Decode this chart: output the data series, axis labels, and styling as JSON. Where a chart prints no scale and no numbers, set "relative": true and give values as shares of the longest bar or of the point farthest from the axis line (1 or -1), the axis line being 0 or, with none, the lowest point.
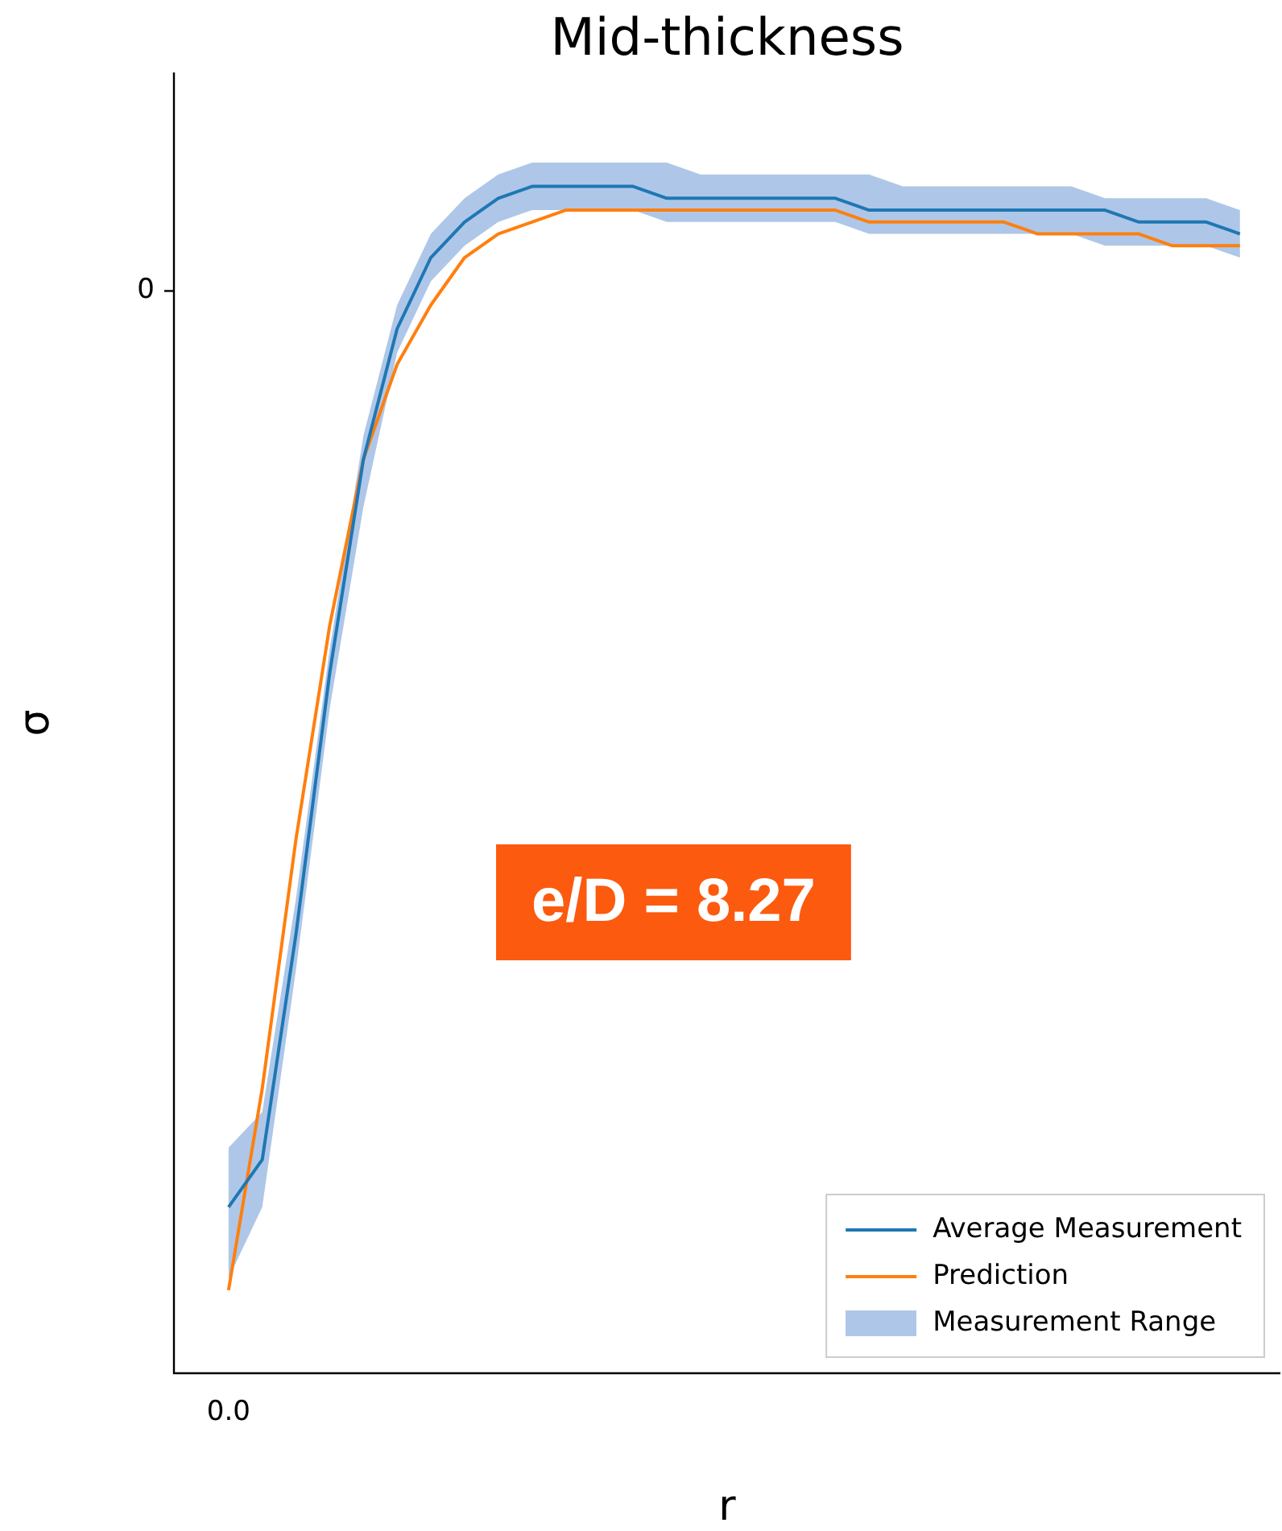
{
  "chart_data": {
    "type": "line",
    "title": "Mid-thickness",
    "xlabel": "r",
    "ylabel": "σ",
    "relative": true,
    "legend": "bottom right",
    "categories": [
      null,
      null,
      null,
      null,
      null,
      null,
      null,
      null,
      null,
      null,
      null,
      null,
      null,
      null,
      null,
      null,
      null,
      null,
      null,
      null,
      null,
      null,
      null,
      null,
      null,
      null,
      null,
      null,
      null,
      null,
      null
    ],
    "series": [
      {
        "name": "Average Measurement",
        "color": "#1f77b4",
        "values": [
          0.14,
          0.18,
          0.37,
          0.59,
          0.77,
          0.88,
          0.94,
          0.97,
          0.99,
          1.0,
          1.0,
          1.0,
          1.0,
          0.99,
          0.99,
          0.99,
          0.99,
          0.99,
          0.99,
          0.98,
          0.98,
          0.98,
          0.98,
          0.98,
          0.98,
          0.98,
          0.98,
          0.97,
          0.97,
          0.97,
          0.96
        ],
        "lower": [
          0.08,
          0.14,
          0.34,
          0.56,
          0.73,
          0.86,
          0.92,
          0.95,
          0.97,
          0.98,
          0.98,
          0.98,
          0.98,
          0.97,
          0.97,
          0.97,
          0.97,
          0.97,
          0.97,
          0.96,
          0.96,
          0.96,
          0.96,
          0.96,
          0.96,
          0.96,
          0.95,
          0.95,
          0.95,
          0.95,
          0.94
        ],
        "upper": [
          0.19,
          0.22,
          0.4,
          0.61,
          0.79,
          0.9,
          0.96,
          0.99,
          1.01,
          1.02,
          1.02,
          1.02,
          1.02,
          1.02,
          1.01,
          1.01,
          1.01,
          1.01,
          1.01,
          1.01,
          1.0,
          1.0,
          1.0,
          1.0,
          1.0,
          1.0,
          0.99,
          0.99,
          0.99,
          0.99,
          0.98
        ]
      },
      {
        "name": "Prediction",
        "color": "#ff7f0e",
        "values": [
          0.07,
          0.24,
          0.45,
          0.63,
          0.77,
          0.85,
          0.9,
          0.94,
          0.96,
          0.97,
          0.98,
          0.98,
          0.98,
          0.98,
          0.98,
          0.98,
          0.98,
          0.98,
          0.98,
          0.97,
          0.97,
          0.97,
          0.97,
          0.97,
          0.96,
          0.96,
          0.96,
          0.96,
          0.95,
          0.95,
          0.95
        ]
      }
    ],
    "annotations": [
      "e/D = 8.27",
      "0",
      "0.0",
      "Measurement Range"
    ]
  }
}
